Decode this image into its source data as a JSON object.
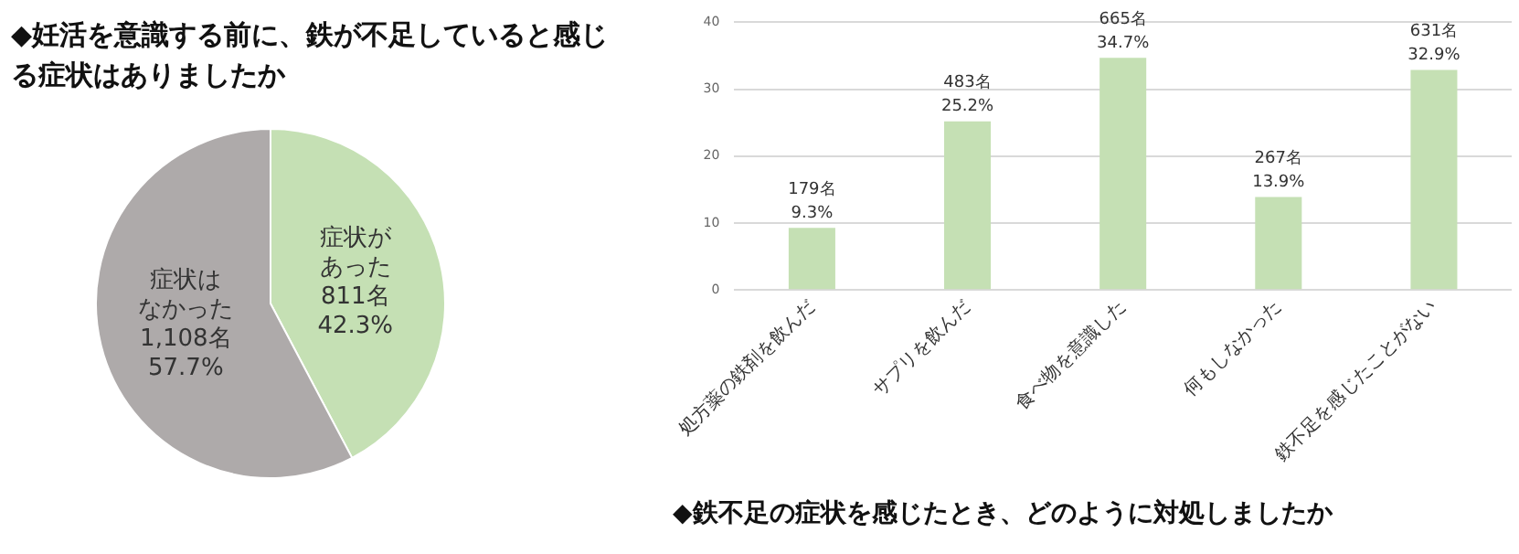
{
  "chart_data": [
    {
      "type": "pie",
      "title": "◆妊活を意識する前に、鉄が不足していると感じる症状はありましたか",
      "categories": [
        "症状があった",
        "症状はなかった"
      ],
      "values": [
        811,
        1108
      ],
      "colors": [
        "#c5e0b4",
        "#aeaaaa"
      ],
      "value_labels": [
        "811名\n42.3%",
        "1,108名\n57.7%"
      ],
      "legend": false
    },
    {
      "type": "bar",
      "title": "◆鉄不足の症状を感じたとき、どのように対処しましたか",
      "categories": [
        "処方薬の鉄剤を飲んだ",
        "サプリを飲んだ",
        "食べ物を意識した",
        "何もしなかった",
        "鉄不足を感じたことがない"
      ],
      "values": [
        9.3,
        25.2,
        34.7,
        13.9,
        32.9
      ],
      "color": "#c5e0b4",
      "value_labels": [
        "179名\n9.3%",
        "483名\n25.2%",
        "665名\n34.7%",
        "267名\n13.9%",
        "631名\n32.9%"
      ],
      "ylim": [
        0,
        40
      ],
      "yticks": [
        0,
        10,
        20,
        30,
        40
      ],
      "grid": "y",
      "legend": false
    }
  ]
}
